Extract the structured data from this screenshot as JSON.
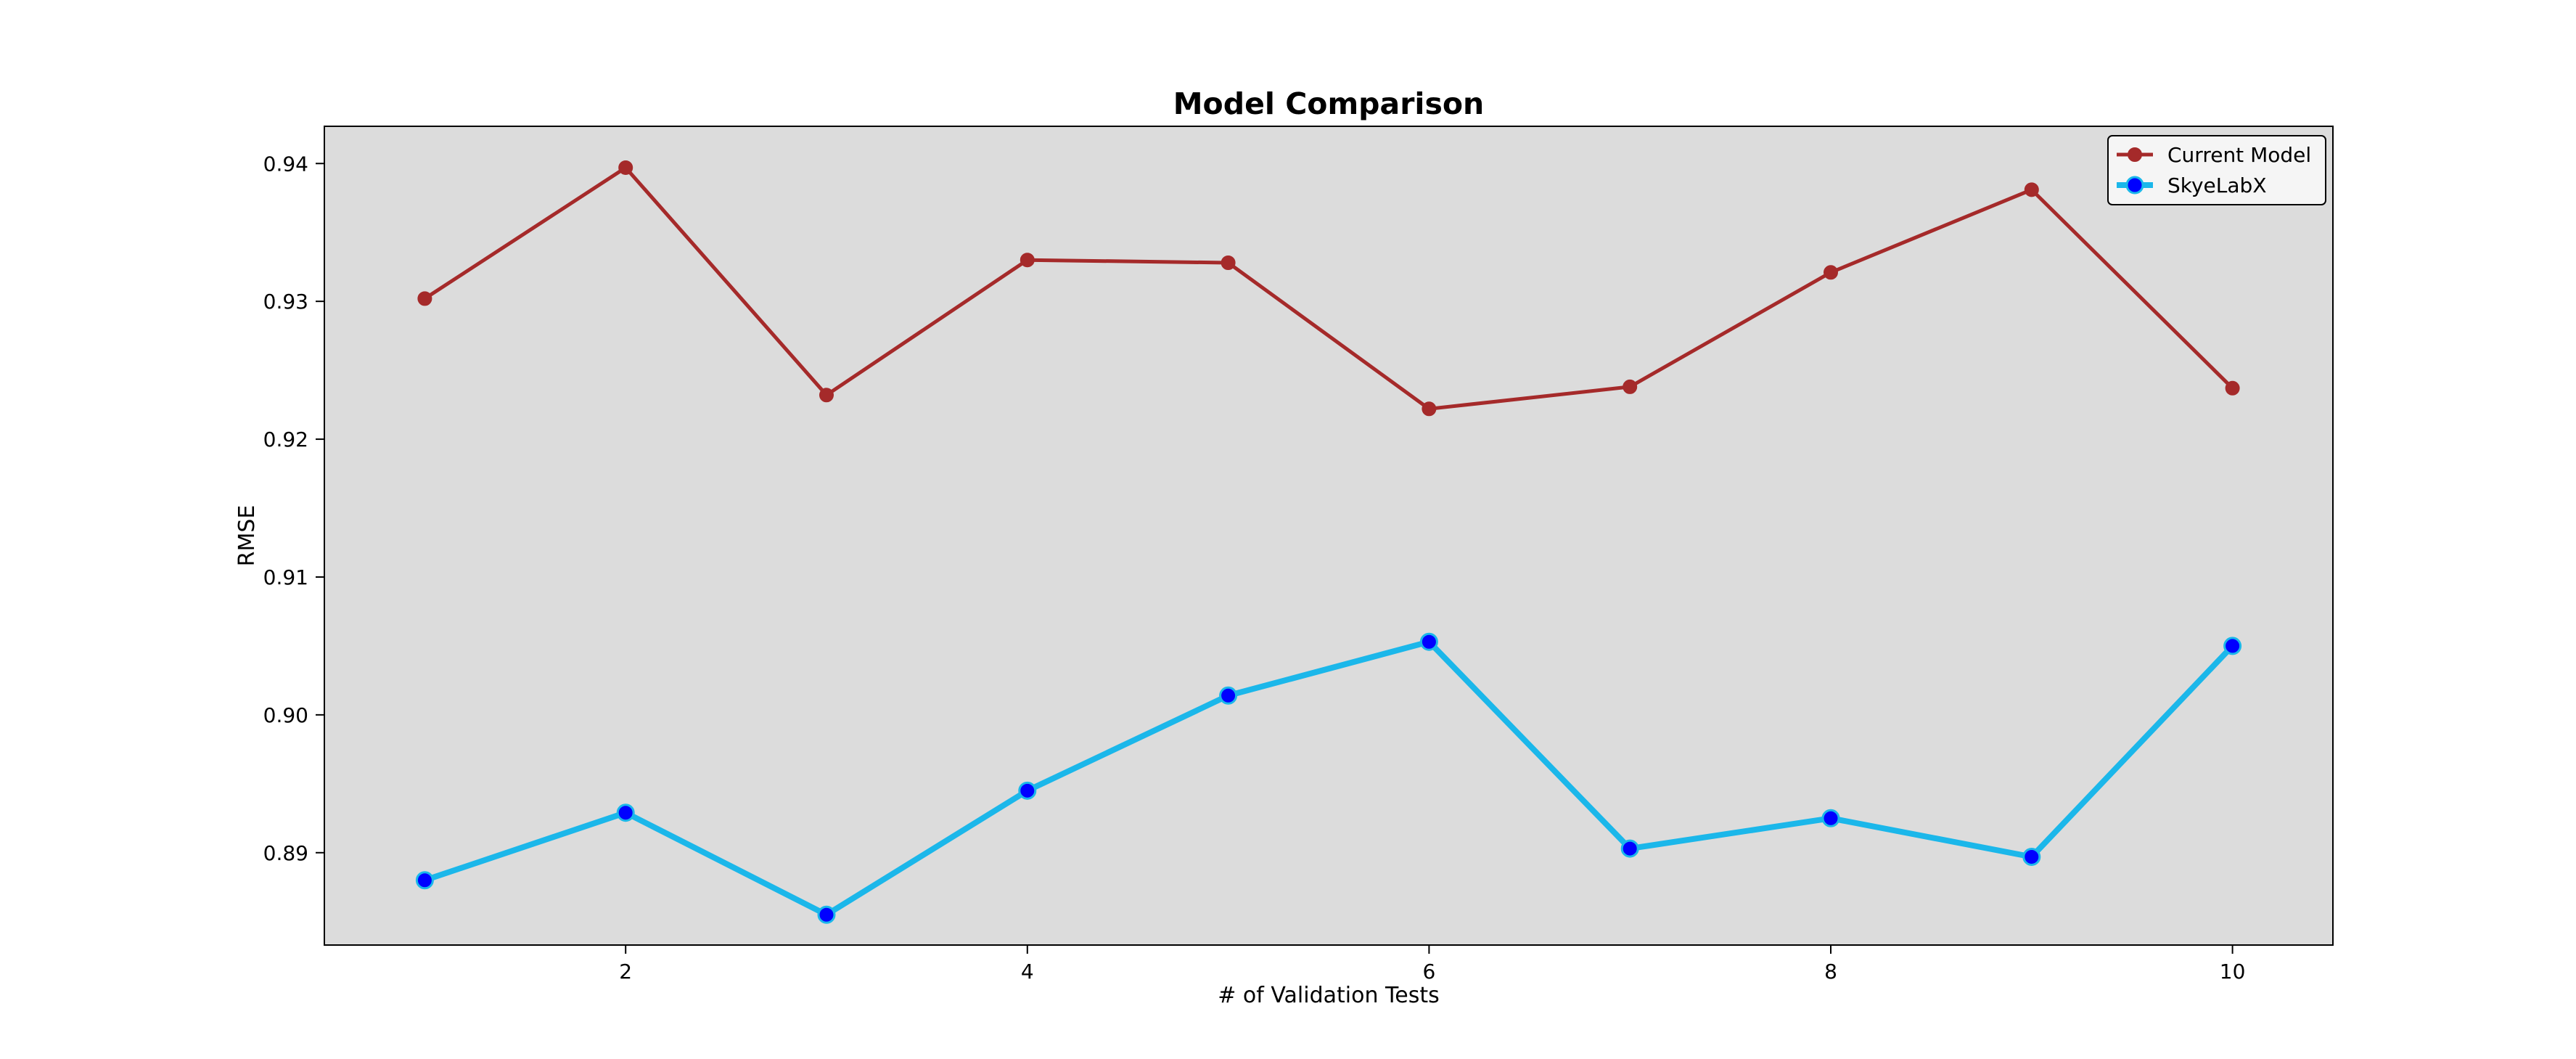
{
  "chart_data": {
    "type": "line",
    "title": "Model Comparison",
    "xlabel": "# of Validation Tests",
    "ylabel": "RMSE",
    "x": [
      1,
      2,
      3,
      4,
      5,
      6,
      7,
      8,
      9,
      10
    ],
    "xlim": [
      0.5,
      10.5
    ],
    "ylim": [
      0.8833,
      0.9427
    ],
    "xticks": [
      2,
      4,
      6,
      8,
      10
    ],
    "yticks": [
      0.89,
      0.9,
      0.91,
      0.92,
      0.93,
      0.94
    ],
    "ytick_labels": [
      "0.89",
      "0.90",
      "0.91",
      "0.92",
      "0.93",
      "0.94"
    ],
    "grid": false,
    "legend_position": "top-right",
    "plot_background": "#dcdcdc",
    "series": [
      {
        "name": "Current Model",
        "color": "#a52a2a",
        "marker_color": "#a52a2a",
        "values": [
          0.9302,
          0.9397,
          0.9232,
          0.933,
          0.9328,
          0.9222,
          0.9238,
          0.9321,
          0.9381,
          0.9237
        ]
      },
      {
        "name": "SkyeLabX",
        "color": "#1bb7ea",
        "marker_color": "#0000ff",
        "values": [
          0.888,
          0.8929,
          0.8855,
          0.8945,
          0.9014,
          0.9053,
          0.8903,
          0.8925,
          0.8897,
          0.905
        ]
      }
    ]
  }
}
